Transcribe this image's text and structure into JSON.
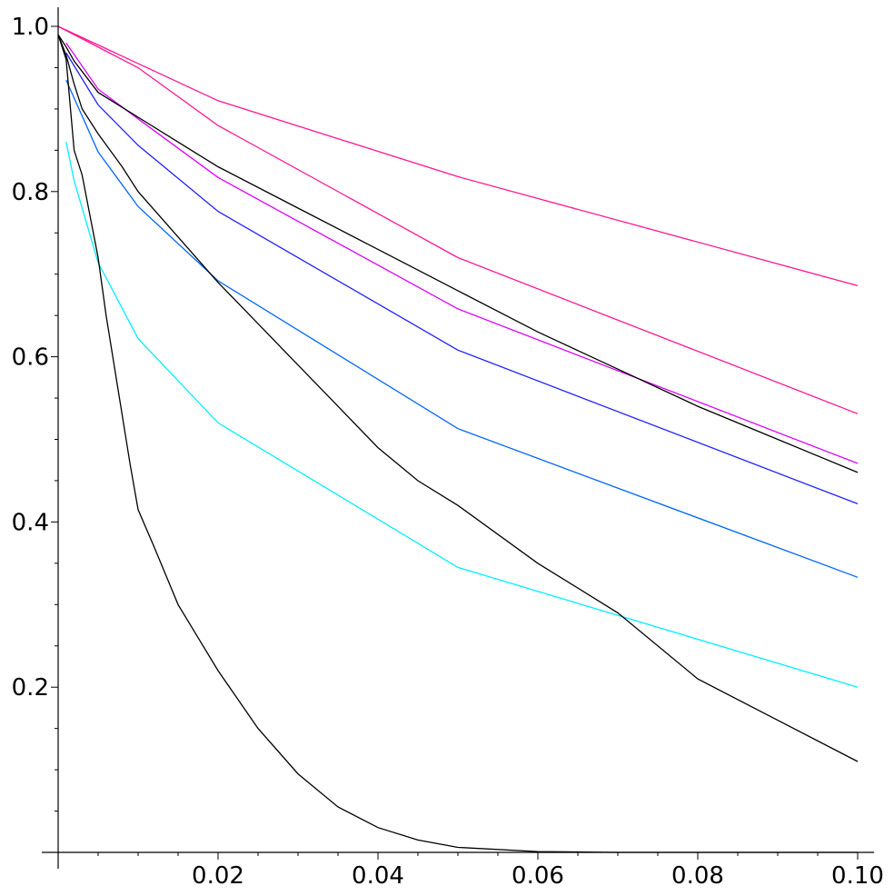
{
  "chart_data": {
    "type": "line",
    "title": "",
    "xlabel": "",
    "ylabel": "",
    "xlim": [
      0,
      0.1
    ],
    "ylim": [
      0,
      1.0
    ],
    "grid": false,
    "legend": "none",
    "x_ticks": [
      {
        "value": 0.02,
        "label": "0.02"
      },
      {
        "value": 0.04,
        "label": "0.04"
      },
      {
        "value": 0.06,
        "label": "0.06"
      },
      {
        "value": 0.08,
        "label": "0.08"
      },
      {
        "value": 0.1,
        "label": "0.10"
      }
    ],
    "y_ticks": [
      {
        "value": 0.2,
        "label": "0.2"
      },
      {
        "value": 0.4,
        "label": "0.4"
      },
      {
        "value": 0.6,
        "label": "0.6"
      },
      {
        "value": 0.8,
        "label": "0.8"
      },
      {
        "value": 1.0,
        "label": "1.0"
      }
    ],
    "series": [
      {
        "color": "#ff1493",
        "points": [
          [
            0,
            1.0
          ],
          [
            0.02,
            0.91
          ],
          [
            0.05,
            0.818
          ],
          [
            0.1,
            0.686
          ]
        ]
      },
      {
        "color": "#ff1493",
        "points": [
          [
            0,
            1.0
          ],
          [
            0.01,
            0.95
          ],
          [
            0.02,
            0.88
          ],
          [
            0.05,
            0.72
          ],
          [
            0.1,
            0.531
          ]
        ]
      },
      {
        "color": "#dd00ff",
        "points": [
          [
            0.001,
            0.98
          ],
          [
            0.005,
            0.924
          ],
          [
            0.01,
            0.888
          ],
          [
            0.02,
            0.817
          ],
          [
            0.05,
            0.658
          ],
          [
            0.1,
            0.471
          ]
        ]
      },
      {
        "color": "#2020ff",
        "points": [
          [
            0.001,
            0.968
          ],
          [
            0.005,
            0.905
          ],
          [
            0.01,
            0.856
          ],
          [
            0.02,
            0.776
          ],
          [
            0.05,
            0.608
          ],
          [
            0.1,
            0.422
          ]
        ]
      },
      {
        "color": "#0066ff",
        "points": [
          [
            0.001,
            0.935
          ],
          [
            0.005,
            0.848
          ],
          [
            0.01,
            0.782
          ],
          [
            0.02,
            0.692
          ],
          [
            0.05,
            0.513
          ],
          [
            0.1,
            0.333
          ]
        ]
      },
      {
        "color": "#00eeff",
        "points": [
          [
            0.001,
            0.86
          ],
          [
            0.002,
            0.813
          ],
          [
            0.005,
            0.714
          ],
          [
            0.01,
            0.622
          ],
          [
            0.02,
            0.52
          ],
          [
            0.05,
            0.345
          ],
          [
            0.1,
            0.2
          ]
        ]
      },
      {
        "color": "#000000",
        "points": [
          [
            0,
            0.99
          ],
          [
            0.001,
            0.975
          ],
          [
            0.002,
            0.958
          ],
          [
            0.005,
            0.92
          ],
          [
            0.01,
            0.89
          ],
          [
            0.015,
            0.86
          ],
          [
            0.02,
            0.83
          ],
          [
            0.03,
            0.78
          ],
          [
            0.04,
            0.73
          ],
          [
            0.05,
            0.68
          ],
          [
            0.06,
            0.63
          ],
          [
            0.07,
            0.585
          ],
          [
            0.08,
            0.54
          ],
          [
            0.09,
            0.5
          ],
          [
            0.1,
            0.46
          ]
        ]
      },
      {
        "color": "#000000",
        "points": [
          [
            0,
            0.99
          ],
          [
            0.001,
            0.965
          ],
          [
            0.002,
            0.93
          ],
          [
            0.003,
            0.9
          ],
          [
            0.005,
            0.87
          ],
          [
            0.008,
            0.83
          ],
          [
            0.01,
            0.8
          ],
          [
            0.015,
            0.745
          ],
          [
            0.02,
            0.69
          ],
          [
            0.025,
            0.64
          ],
          [
            0.03,
            0.59
          ],
          [
            0.035,
            0.54
          ],
          [
            0.04,
            0.49
          ],
          [
            0.045,
            0.45
          ],
          [
            0.05,
            0.42
          ],
          [
            0.06,
            0.35
          ],
          [
            0.07,
            0.29
          ],
          [
            0.08,
            0.21
          ],
          [
            0.09,
            0.16
          ],
          [
            0.1,
            0.11
          ]
        ]
      },
      {
        "color": "#000000",
        "points": [
          [
            0,
            0.99
          ],
          [
            0.001,
            0.96
          ],
          [
            0.002,
            0.85
          ],
          [
            0.003,
            0.82
          ],
          [
            0.004,
            0.77
          ],
          [
            0.005,
            0.72
          ],
          [
            0.006,
            0.65
          ],
          [
            0.007,
            0.59
          ],
          [
            0.008,
            0.53
          ],
          [
            0.009,
            0.47
          ],
          [
            0.01,
            0.415
          ],
          [
            0.012,
            0.37
          ],
          [
            0.015,
            0.3
          ],
          [
            0.0175,
            0.26
          ],
          [
            0.02,
            0.22
          ],
          [
            0.025,
            0.15
          ],
          [
            0.03,
            0.095
          ],
          [
            0.035,
            0.055
          ],
          [
            0.04,
            0.03
          ],
          [
            0.045,
            0.015
          ],
          [
            0.05,
            0.006
          ],
          [
            0.06,
            0.001
          ],
          [
            0.07,
            0.0
          ],
          [
            0.1,
            0.0
          ]
        ]
      }
    ]
  }
}
